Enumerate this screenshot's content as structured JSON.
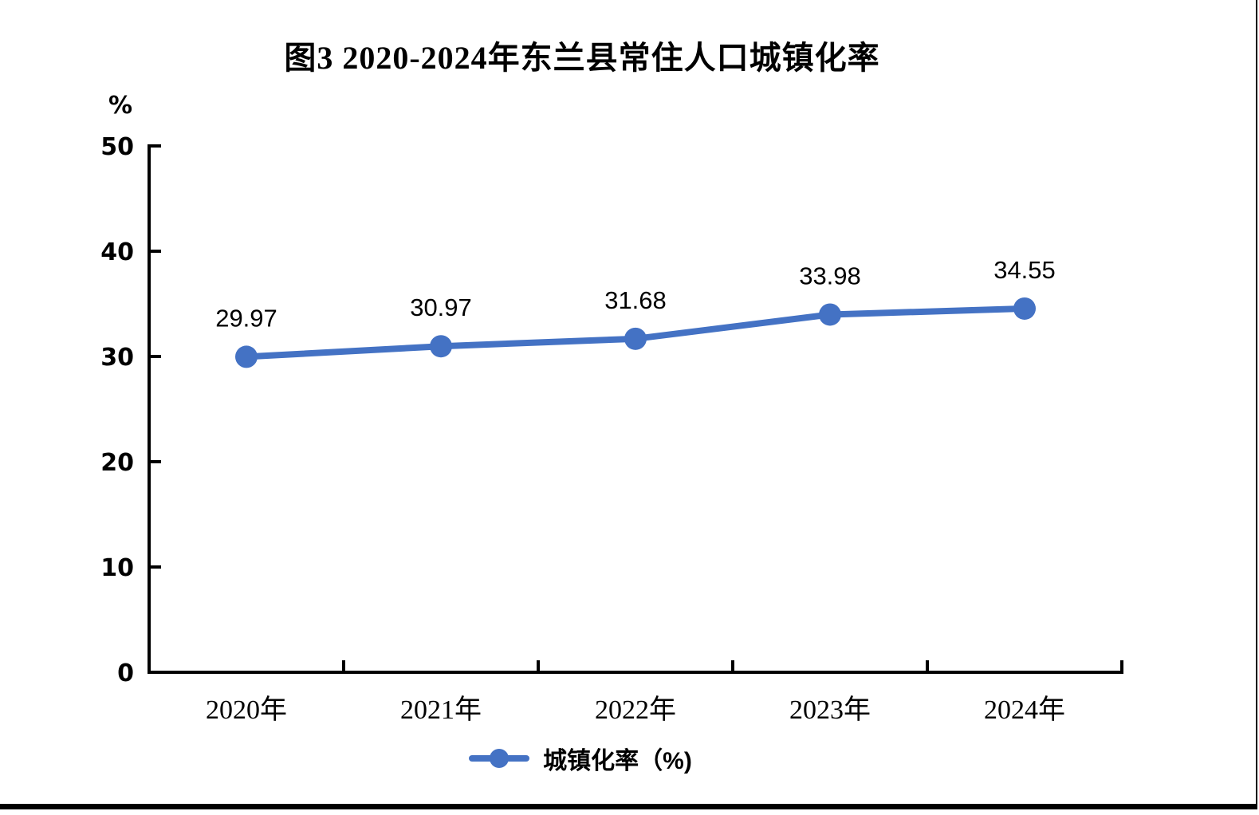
{
  "page": {
    "background_color": "#ffffff",
    "border_color": "#000000"
  },
  "chart": {
    "title": "图3  2020-2024年东兰县常住人口城镇化率",
    "y_axis_unit_label": "%",
    "legend_label": "城镇化率（%)"
  },
  "chart_data": {
    "type": "line",
    "title": "图3  2020-2024年东兰县常住人口城镇化率",
    "categories": [
      "2020年",
      "2021年",
      "2022年",
      "2023年",
      "2024年"
    ],
    "series": [
      {
        "name": "城镇化率（%)",
        "values": [
          29.97,
          30.97,
          31.68,
          33.98,
          34.55
        ]
      }
    ],
    "data_labels": [
      "29.97",
      "30.97",
      "31.68",
      "33.98",
      "34.55"
    ],
    "ylabel": "%",
    "ylim": [
      0,
      50
    ],
    "y_ticks": [
      0,
      10,
      20,
      30,
      40,
      50
    ],
    "grid": false,
    "legend_position": "bottom",
    "line_color": "#4472C4",
    "axis_color": "#000000",
    "marker": "circle"
  }
}
